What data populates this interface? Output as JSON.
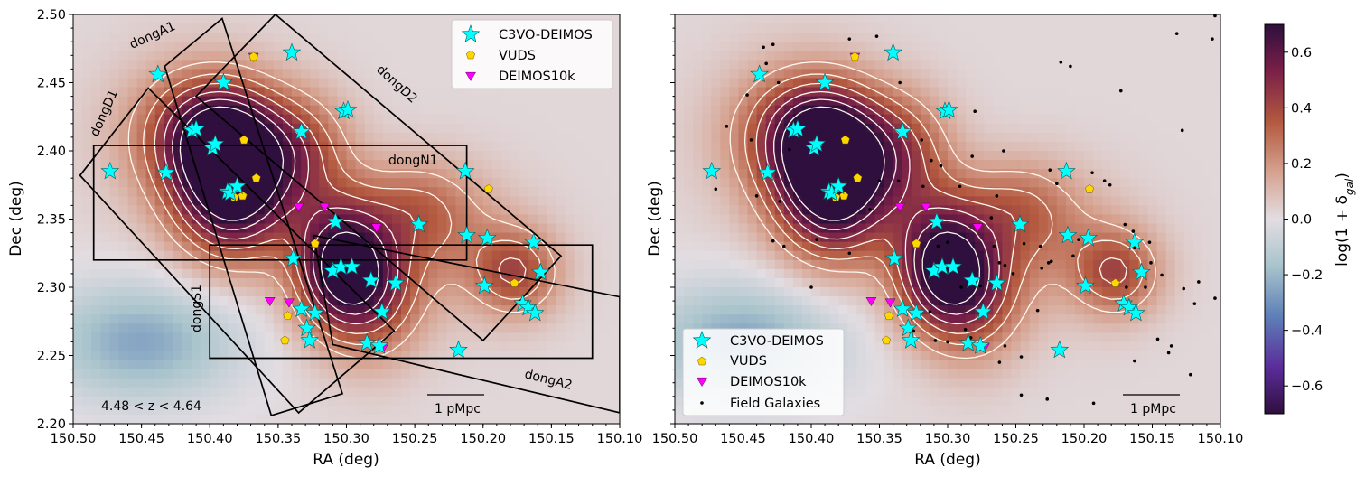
{
  "chart_data": {
    "type": "scatter",
    "panels": [
      {
        "name": "left",
        "xlabel": "RA (deg)",
        "ylabel": "Dec (deg)",
        "xlim": [
          150.5,
          150.1
        ],
        "ylim": [
          2.2,
          2.5
        ],
        "xticks": [
          "150.50",
          "150.45",
          "150.40",
          "150.35",
          "150.30",
          "150.25",
          "150.20",
          "150.15",
          "150.10"
        ],
        "yticks": [
          "2.20",
          "2.25",
          "2.30",
          "2.35",
          "2.40",
          "2.45",
          "2.50"
        ],
        "redshift_note": "4.48 < z < 4.64",
        "scale_bar_label": "1 pMpc",
        "region_labels": [
          "dongA1",
          "dongD1",
          "dongD2",
          "dongN1",
          "dongS1",
          "dongA2"
        ],
        "legend": [
          "C3VO-DEIMOS",
          "VUDS",
          "DEIMOS10k"
        ]
      },
      {
        "name": "right",
        "xlabel": "RA (deg)",
        "ylabel": "Dec (deg)",
        "xlim": [
          150.5,
          150.1
        ],
        "ylim": [
          2.2,
          2.5
        ],
        "xticks": [
          "150.50",
          "150.45",
          "150.40",
          "150.35",
          "150.30",
          "150.25",
          "150.20",
          "150.15",
          "150.10"
        ],
        "scale_bar_label": "1 pMpc",
        "legend": [
          "C3VO-DEIMOS",
          "VUDS",
          "DEIMOS10k",
          "Field Galaxies"
        ]
      }
    ],
    "colorbar": {
      "label": "log(1 + δ",
      "label_sub": "gal",
      "label_end": ")",
      "range": [
        -0.7,
        0.7
      ],
      "ticks": [
        "0.6",
        "0.4",
        "0.2",
        "0.0",
        "−0.2",
        "−0.4",
        "−0.6"
      ]
    },
    "series": [
      {
        "name": "C3VO-DEIMOS",
        "marker": "star",
        "color": "#00ffff",
        "points": [
          [
            150.473,
            2.385
          ],
          [
            150.438,
            2.456
          ],
          [
            150.432,
            2.384
          ],
          [
            150.413,
            2.415
          ],
          [
            150.41,
            2.416
          ],
          [
            150.398,
            2.402
          ],
          [
            150.396,
            2.405
          ],
          [
            150.39,
            2.45
          ],
          [
            150.387,
            2.37
          ],
          [
            150.385,
            2.369
          ],
          [
            150.38,
            2.374
          ],
          [
            150.34,
            2.472
          ],
          [
            150.333,
            2.414
          ],
          [
            150.308,
            2.348
          ],
          [
            150.302,
            2.429
          ],
          [
            150.299,
            2.43
          ],
          [
            150.339,
            2.321
          ],
          [
            150.31,
            2.312
          ],
          [
            150.304,
            2.315
          ],
          [
            150.296,
            2.315
          ],
          [
            150.282,
            2.305
          ],
          [
            150.264,
            2.303
          ],
          [
            150.274,
            2.282
          ],
          [
            150.333,
            2.284
          ],
          [
            150.329,
            2.27
          ],
          [
            150.323,
            2.281
          ],
          [
            150.327,
            2.261
          ],
          [
            150.285,
            2.259
          ],
          [
            150.276,
            2.257
          ],
          [
            150.247,
            2.346
          ],
          [
            150.213,
            2.385
          ],
          [
            150.212,
            2.338
          ],
          [
            150.197,
            2.336
          ],
          [
            150.199,
            2.301
          ],
          [
            150.163,
            2.333
          ],
          [
            150.158,
            2.311
          ],
          [
            150.171,
            2.288
          ],
          [
            150.167,
            2.285
          ],
          [
            150.162,
            2.281
          ],
          [
            150.218,
            2.254
          ]
        ]
      },
      {
        "name": "VUDS",
        "marker": "pentagon",
        "color": "#ffd700",
        "points": [
          [
            150.368,
            2.469
          ],
          [
            150.375,
            2.408
          ],
          [
            150.366,
            2.38
          ],
          [
            150.382,
            2.366
          ],
          [
            150.376,
            2.367
          ],
          [
            150.323,
            2.332
          ],
          [
            150.343,
            2.279
          ],
          [
            150.345,
            2.261
          ],
          [
            150.196,
            2.372
          ],
          [
            150.177,
            2.303
          ]
        ]
      },
      {
        "name": "DEIMOS10k",
        "marker": "triangle",
        "color": "#ff00ff",
        "points": [
          [
            150.368,
            2.469
          ],
          [
            150.356,
            2.29
          ],
          [
            150.342,
            2.289
          ],
          [
            150.335,
            2.359
          ],
          [
            150.316,
            2.359
          ],
          [
            150.278,
            2.344
          ],
          [
            150.273,
            2.256
          ]
        ]
      },
      {
        "name": "Field Galaxies",
        "marker": "dot",
        "color": "#000000",
        "points": [
          [
            150.435,
            2.476
          ],
          [
            150.433,
            2.464
          ],
          [
            150.428,
            2.478
          ],
          [
            150.424,
            2.45
          ],
          [
            150.447,
            2.441
          ],
          [
            150.462,
            2.418
          ],
          [
            150.444,
            2.408
          ],
          [
            150.416,
            2.401
          ],
          [
            150.423,
            2.363
          ],
          [
            150.44,
            2.367
          ],
          [
            150.47,
            2.372
          ],
          [
            150.428,
            2.334
          ],
          [
            150.42,
            2.33
          ],
          [
            150.396,
            2.335
          ],
          [
            150.372,
            2.325
          ],
          [
            150.4,
            2.3
          ],
          [
            150.372,
            2.482
          ],
          [
            150.352,
            2.484
          ],
          [
            150.335,
            2.45
          ],
          [
            150.319,
            2.408
          ],
          [
            150.312,
            2.393
          ],
          [
            150.318,
            2.374
          ],
          [
            150.336,
            2.378
          ],
          [
            150.35,
            2.378
          ],
          [
            150.357,
            2.357
          ],
          [
            150.305,
            2.389
          ],
          [
            150.282,
            2.396
          ],
          [
            150.291,
            2.374
          ],
          [
            150.264,
            2.367
          ],
          [
            150.259,
            2.4
          ],
          [
            150.28,
            2.429
          ],
          [
            150.298,
            2.43
          ],
          [
            150.268,
            2.351
          ],
          [
            150.266,
            2.33
          ],
          [
            150.258,
            2.316
          ],
          [
            150.252,
            2.31
          ],
          [
            150.244,
            2.332
          ],
          [
            150.232,
            2.33
          ],
          [
            150.231,
            2.314
          ],
          [
            150.226,
            2.318
          ],
          [
            150.225,
            2.386
          ],
          [
            150.22,
            2.376
          ],
          [
            150.217,
            2.465
          ],
          [
            150.21,
            2.462
          ],
          [
            150.204,
            2.335
          ],
          [
            150.208,
            2.323
          ],
          [
            150.194,
            2.384
          ],
          [
            150.185,
            2.378
          ],
          [
            150.181,
            2.375
          ],
          [
            150.173,
            2.444
          ],
          [
            150.17,
            2.346
          ],
          [
            150.164,
            2.341
          ],
          [
            150.163,
            2.329
          ],
          [
            150.152,
            2.333
          ],
          [
            150.151,
            2.318
          ],
          [
            150.143,
            2.309
          ],
          [
            150.146,
            2.262
          ],
          [
            150.138,
            2.252
          ],
          [
            150.136,
            2.257
          ],
          [
            150.132,
            2.486
          ],
          [
            150.128,
            2.415
          ],
          [
            150.127,
            2.299
          ],
          [
            150.122,
            2.236
          ],
          [
            150.119,
            2.288
          ],
          [
            150.116,
            2.304
          ],
          [
            150.104,
            2.499
          ],
          [
            150.106,
            2.482
          ],
          [
            150.104,
            2.292
          ],
          [
            150.193,
            2.215
          ],
          [
            150.227,
            2.218
          ],
          [
            150.246,
            2.221
          ],
          [
            150.258,
            2.257
          ],
          [
            150.246,
            2.249
          ],
          [
            150.262,
            2.245
          ],
          [
            150.283,
            2.263
          ],
          [
            150.287,
            2.269
          ],
          [
            150.3,
            2.26
          ],
          [
            150.309,
            2.261
          ],
          [
            150.325,
            2.268
          ],
          [
            150.313,
            2.282
          ],
          [
            150.307,
            2.33
          ],
          [
            150.3,
            2.333
          ],
          [
            150.29,
            2.3
          ],
          [
            150.276,
            2.301
          ],
          [
            150.262,
            2.318
          ],
          [
            150.234,
            2.283
          ],
          [
            150.224,
            2.319
          ],
          [
            150.163,
            2.246
          ],
          [
            150.155,
            2.3
          ],
          [
            150.169,
            2.3
          ]
        ]
      }
    ],
    "overdensity_peaks": [
      {
        "ra": 150.383,
        "dec": 2.375,
        "amp": 0.78,
        "sx": 0.03,
        "sy": 0.038
      },
      {
        "ra": 150.305,
        "dec": 2.315,
        "amp": 0.7,
        "sx": 0.024,
        "sy": 0.034
      },
      {
        "ra": 150.395,
        "dec": 2.415,
        "amp": 0.38,
        "sx": 0.032,
        "sy": 0.028
      },
      {
        "ra": 150.33,
        "dec": 2.4,
        "amp": 0.28,
        "sx": 0.025,
        "sy": 0.03
      },
      {
        "ra": 150.275,
        "dec": 2.295,
        "amp": 0.3,
        "sx": 0.024,
        "sy": 0.034
      },
      {
        "ra": 150.175,
        "dec": 2.31,
        "amp": 0.34,
        "sx": 0.022,
        "sy": 0.022
      },
      {
        "ra": 150.25,
        "dec": 2.36,
        "amp": 0.22,
        "sx": 0.03,
        "sy": 0.025
      },
      {
        "ra": 150.42,
        "dec": 2.41,
        "amp": 0.18,
        "sx": 0.04,
        "sy": 0.04
      },
      {
        "ra": 150.22,
        "dec": 2.33,
        "amp": 0.15,
        "sx": 0.04,
        "sy": 0.035
      },
      {
        "ra": 150.45,
        "dec": 2.26,
        "amp": -0.28,
        "sx": 0.05,
        "sy": 0.03
      }
    ],
    "regions": [
      {
        "name": "dongN1",
        "corners": [
          [
            150.485,
            2.404
          ],
          [
            150.212,
            2.404
          ],
          [
            150.212,
            2.32
          ],
          [
            150.485,
            2.32
          ]
        ]
      },
      {
        "name": "dongS1",
        "corners": [
          [
            150.4,
            2.331
          ],
          [
            150.12,
            2.331
          ],
          [
            150.12,
            2.248
          ],
          [
            150.4,
            2.248
          ]
        ]
      },
      {
        "name": "dongA1",
        "corners": [
          [
            150.433,
            2.462
          ],
          [
            150.391,
            2.497
          ],
          [
            150.303,
            2.222
          ],
          [
            150.355,
            2.206
          ]
        ]
      },
      {
        "name": "dongD1",
        "corners": [
          [
            150.495,
            2.382
          ],
          [
            150.445,
            2.446
          ],
          [
            150.265,
            2.268
          ],
          [
            150.335,
            2.208
          ]
        ]
      },
      {
        "name": "dongD2",
        "corners": [
          [
            150.41,
            2.44
          ],
          [
            150.352,
            2.5
          ],
          [
            150.143,
            2.323
          ],
          [
            150.2,
            2.261
          ]
        ]
      },
      {
        "name": "dongA2",
        "corners": [
          [
            150.324,
            2.338
          ],
          [
            150.31,
            2.258
          ],
          [
            150.1,
            2.208
          ],
          [
            150.1,
            2.293
          ]
        ]
      }
    ]
  }
}
